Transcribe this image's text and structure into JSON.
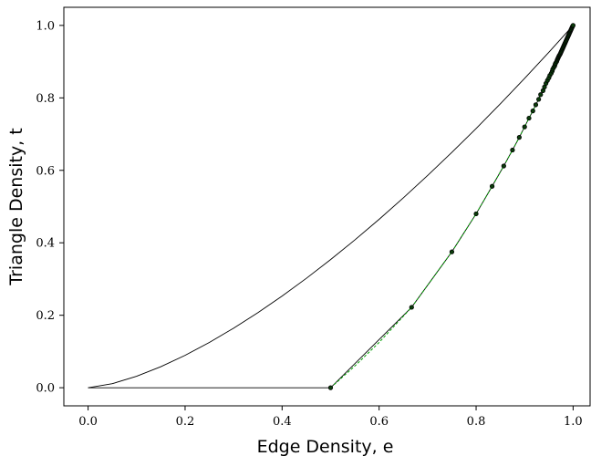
{
  "chart_data": {
    "type": "line",
    "xlabel": "Edge Density, e",
    "ylabel": "Triangle Density, t",
    "xlim": [
      -0.05,
      1.035
    ],
    "ylim": [
      -0.05,
      1.05
    ],
    "x_ticks": [
      "0.0",
      "0.2",
      "0.4",
      "0.6",
      "0.8",
      "1.0"
    ],
    "y_ticks": [
      "0.0",
      "0.2",
      "0.4",
      "0.6",
      "0.8",
      "1.0"
    ],
    "grid": false,
    "series": [
      {
        "style": "upper-curve",
        "color": "#000000",
        "x": [
          0,
          0.05,
          0.1,
          0.15,
          0.2,
          0.25,
          0.3,
          0.35,
          0.4,
          0.45,
          0.5,
          0.55,
          0.6,
          0.65,
          0.7,
          0.75,
          0.8,
          0.85,
          0.9,
          0.95,
          1.0
        ],
        "y": [
          0,
          0.0112,
          0.0316,
          0.0581,
          0.0894,
          0.125,
          0.1643,
          0.2071,
          0.253,
          0.3019,
          0.3536,
          0.4079,
          0.4648,
          0.524,
          0.5857,
          0.6495,
          0.7155,
          0.7837,
          0.8538,
          0.926,
          1.0
        ]
      },
      {
        "style": "lower-baseline",
        "color": "#000000",
        "x": [
          0,
          0.5
        ],
        "y": [
          0,
          0
        ]
      },
      {
        "style": "lower-scallops",
        "color": "#000000",
        "x": [
          0.5,
          0.667,
          0.75,
          0.8,
          0.833,
          0.857,
          0.875,
          0.889,
          0.9,
          0.909,
          0.917,
          0.923,
          0.929,
          0.933,
          0.938,
          0.941,
          0.944,
          0.947,
          0.95,
          0.952,
          0.955,
          0.957,
          0.958,
          0.96,
          0.962,
          0.963,
          0.964,
          0.966,
          0.967,
          0.968,
          0.969,
          0.97,
          0.971,
          0.972,
          0.973,
          0.974,
          0.975,
          0.976,
          0.977,
          0.978,
          0.979,
          0.98,
          0.981,
          0.982,
          0.983,
          0.984,
          0.985,
          0.986,
          0.987,
          0.988,
          0.989,
          0.99,
          0.991,
          0.992,
          0.993,
          0.994,
          0.995,
          0.996,
          0.997,
          0.998,
          0.999,
          1.0
        ],
        "y": [
          0,
          0.222,
          0.375,
          0.48,
          0.556,
          0.612,
          0.656,
          0.691,
          0.72,
          0.744,
          0.764,
          0.781,
          0.796,
          0.809,
          0.82,
          0.83,
          0.84,
          0.848,
          0.855,
          0.862,
          0.868,
          0.874,
          0.879,
          0.884,
          0.888,
          0.893,
          0.896,
          0.9,
          0.904,
          0.907,
          0.91,
          0.913,
          0.916,
          0.918,
          0.92,
          0.923,
          0.926,
          0.929,
          0.932,
          0.935,
          0.938,
          0.941,
          0.944,
          0.947,
          0.95,
          0.953,
          0.956,
          0.959,
          0.962,
          0.965,
          0.968,
          0.971,
          0.974,
          0.977,
          0.98,
          0.983,
          0.986,
          0.989,
          0.992,
          0.995,
          0.998,
          1.0
        ]
      },
      {
        "style": "dashed",
        "color": "#00a000",
        "x": [
          0.5,
          0.55,
          0.6,
          0.667,
          0.75,
          0.8,
          0.833,
          0.857,
          0.875,
          0.889,
          0.9,
          0.909,
          0.917,
          0.923,
          0.929,
          0.933,
          0.938,
          0.95,
          0.96,
          0.97,
          0.98,
          0.99,
          1.0
        ],
        "y": [
          0,
          0.06,
          0.125,
          0.222,
          0.375,
          0.48,
          0.556,
          0.612,
          0.656,
          0.691,
          0.72,
          0.744,
          0.764,
          0.781,
          0.796,
          0.809,
          0.82,
          0.855,
          0.884,
          0.913,
          0.941,
          0.971,
          1.0
        ]
      }
    ],
    "points": {
      "x": [
        0.5,
        0.667,
        0.75,
        0.8,
        0.833,
        0.857,
        0.875,
        0.889,
        0.9,
        0.909,
        0.917,
        0.923,
        0.929,
        0.933,
        0.938,
        0.941,
        0.944,
        0.947,
        0.95,
        0.952,
        0.955,
        0.957,
        0.958,
        0.96,
        0.962,
        0.963,
        0.964,
        0.966,
        0.967,
        0.968,
        0.969,
        0.97,
        0.971,
        0.972,
        0.973,
        0.974,
        0.975,
        0.976,
        0.977,
        0.978,
        0.979,
        0.98,
        0.981,
        0.982,
        0.983,
        0.984,
        0.985,
        0.986,
        0.987,
        0.988,
        0.989,
        0.99,
        0.991,
        0.992,
        0.993,
        0.994,
        0.995,
        0.996,
        0.997,
        0.998,
        0.999,
        1.0
      ],
      "y": [
        0,
        0.222,
        0.375,
        0.48,
        0.556,
        0.612,
        0.656,
        0.691,
        0.72,
        0.744,
        0.764,
        0.781,
        0.796,
        0.809,
        0.82,
        0.83,
        0.84,
        0.848,
        0.855,
        0.862,
        0.868,
        0.874,
        0.879,
        0.884,
        0.888,
        0.893,
        0.896,
        0.9,
        0.904,
        0.907,
        0.91,
        0.913,
        0.916,
        0.918,
        0.92,
        0.923,
        0.926,
        0.929,
        0.932,
        0.935,
        0.938,
        0.941,
        0.944,
        0.947,
        0.95,
        0.953,
        0.956,
        0.959,
        0.962,
        0.965,
        0.968,
        0.971,
        0.974,
        0.977,
        0.98,
        0.983,
        0.986,
        0.989,
        0.992,
        0.995,
        0.998,
        1.0
      ],
      "fill": "#0b3d0b",
      "stroke": "#000000"
    }
  }
}
